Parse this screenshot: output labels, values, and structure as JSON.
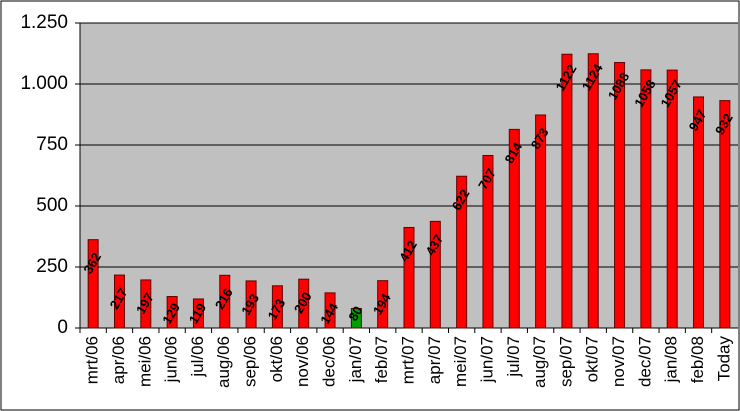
{
  "chart_data": {
    "type": "bar",
    "categories": [
      "mrt/06",
      "apr/06",
      "mei/06",
      "jun/06",
      "jul/06",
      "aug/06",
      "sep/06",
      "okt/06",
      "nov/06",
      "dec/06",
      "jan/07",
      "feb/07",
      "mrt/07",
      "apr/07",
      "mei/07",
      "jun/07",
      "jul/07",
      "aug/07",
      "sep/07",
      "okt/07",
      "nov/07",
      "dec/07",
      "jan/08",
      "feb/08",
      "Today"
    ],
    "values": [
      362,
      217,
      197,
      129,
      119,
      216,
      193,
      173,
      200,
      144,
      80,
      194,
      412,
      437,
      622,
      707,
      814,
      873,
      1122,
      1124,
      1088,
      1058,
      1057,
      947,
      932
    ],
    "colors": [
      "#ff0000",
      "#ff0000",
      "#ff0000",
      "#ff0000",
      "#ff0000",
      "#ff0000",
      "#ff0000",
      "#ff0000",
      "#ff0000",
      "#ff0000",
      "#00a000",
      "#ff0000",
      "#ff0000",
      "#ff0000",
      "#ff0000",
      "#ff0000",
      "#ff0000",
      "#ff0000",
      "#ff0000",
      "#ff0000",
      "#ff0000",
      "#ff0000",
      "#ff0000",
      "#ff0000",
      "#ff0000"
    ],
    "ylim": [
      0,
      1250
    ],
    "yticks": [
      0,
      250,
      500,
      750,
      {
        "value": 1000,
        "label": "1.000"
      },
      {
        "value": 1250,
        "label": "1.250"
      }
    ],
    "grid": true
  }
}
